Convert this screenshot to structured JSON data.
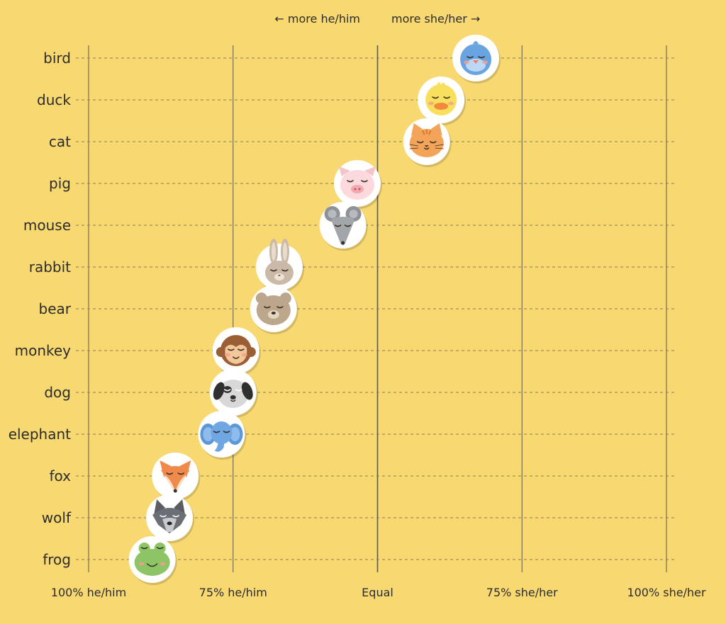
{
  "chart_data": {
    "type": "scatter",
    "direction_labels": {
      "left": "← more he/him",
      "right": "more she/her →"
    },
    "x_ticks": [
      "100% he/him",
      "75% he/him",
      "Equal",
      "75% she/her",
      "100% she/her"
    ],
    "xlim": [
      -50,
      50
    ],
    "grid": true,
    "points": [
      {
        "category": "bird",
        "value": 17.0,
        "icon": "bird-icon"
      },
      {
        "category": "duck",
        "value": 11.0,
        "icon": "duck-icon"
      },
      {
        "category": "cat",
        "value": 8.5,
        "icon": "cat-icon"
      },
      {
        "category": "pig",
        "value": -3.5,
        "icon": "pig-icon"
      },
      {
        "category": "mouse",
        "value": -6.0,
        "icon": "mouse-icon"
      },
      {
        "category": "rabbit",
        "value": -17.0,
        "icon": "rabbit-icon"
      },
      {
        "category": "bear",
        "value": -18.0,
        "icon": "bear-icon"
      },
      {
        "category": "monkey",
        "value": -24.5,
        "icon": "monkey-icon"
      },
      {
        "category": "dog",
        "value": -25.0,
        "icon": "dog-icon"
      },
      {
        "category": "elephant",
        "value": -27.0,
        "icon": "elephant-icon"
      },
      {
        "category": "fox",
        "value": -35.0,
        "icon": "fox-icon"
      },
      {
        "category": "wolf",
        "value": -36.0,
        "icon": "wolf-icon"
      },
      {
        "category": "frog",
        "value": -39.0,
        "icon": "frog-icon"
      }
    ]
  },
  "colors": {
    "background": "#f8d871",
    "grid_line": "#5e5a46",
    "row_line": "#8a7e56",
    "text": "#2c2c2c"
  }
}
